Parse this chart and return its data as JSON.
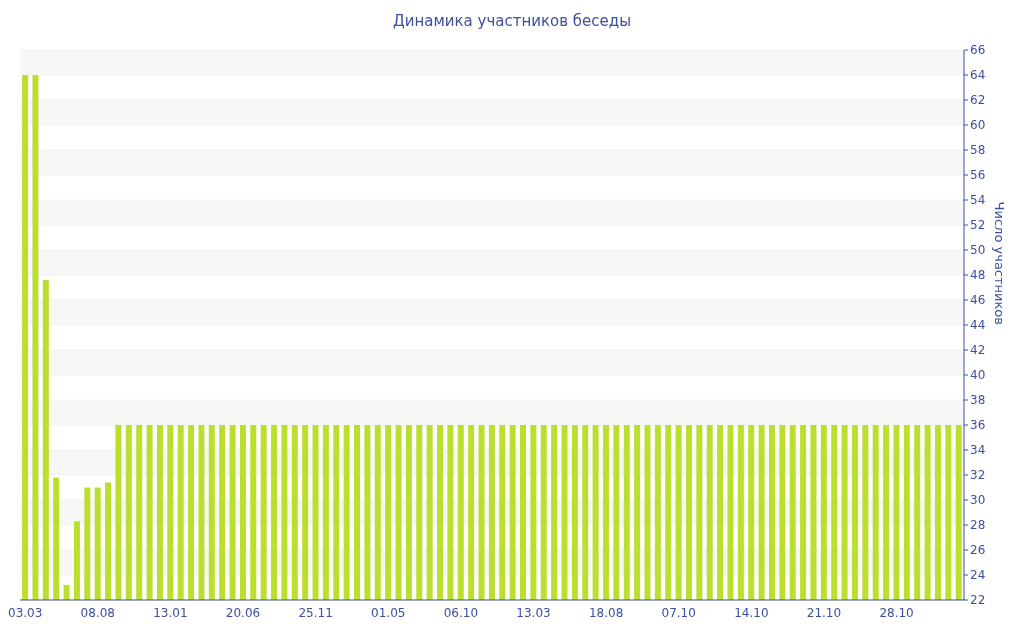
{
  "chart_data": {
    "type": "bar",
    "title": "Динамика участников беседы",
    "ylabel": "Число участников",
    "categories": [
      "03.03",
      null,
      null,
      null,
      null,
      null,
      null,
      "08.08",
      null,
      null,
      null,
      null,
      null,
      null,
      "13.01",
      null,
      null,
      null,
      null,
      null,
      null,
      "20.06",
      null,
      null,
      null,
      null,
      null,
      null,
      "25.11",
      null,
      null,
      null,
      null,
      null,
      null,
      "01.05",
      null,
      null,
      null,
      null,
      null,
      null,
      "06.10",
      null,
      null,
      null,
      null,
      null,
      null,
      "13.03",
      null,
      null,
      null,
      null,
      null,
      null,
      "18.08",
      null,
      null,
      null,
      null,
      null,
      null,
      "07.10",
      null,
      null,
      null,
      null,
      null,
      null,
      "14.10",
      null,
      null,
      null,
      null,
      null,
      null,
      "21.10",
      null,
      null,
      null,
      null,
      null,
      null,
      "28.10",
      null,
      null,
      null,
      null,
      null,
      null
    ],
    "values": [
      64,
      64,
      47.6,
      31.8,
      23.2,
      28.3,
      31,
      31,
      31.4,
      36,
      36,
      36,
      36,
      36,
      36,
      36,
      36,
      36,
      36,
      36,
      36,
      36,
      36,
      36,
      36,
      36,
      36,
      36,
      36,
      36,
      36,
      36,
      36,
      36,
      36,
      36,
      36,
      36,
      36,
      36,
      36,
      36,
      36,
      36,
      36,
      36,
      36,
      36,
      36,
      36,
      36,
      36,
      36,
      36,
      36,
      36,
      36,
      36,
      36,
      36,
      36,
      36,
      36,
      36,
      36,
      36,
      36,
      36,
      36,
      36,
      36,
      36,
      36,
      36,
      36,
      36,
      36,
      36,
      36,
      36,
      36,
      36,
      36,
      36,
      36,
      36,
      36,
      36,
      36,
      36,
      36
    ],
    "color": "#bbdf2e",
    "ylim": [
      22,
      66
    ],
    "yticks": [
      22,
      24,
      26,
      28,
      30,
      32,
      34,
      36,
      38,
      40,
      42,
      44,
      46,
      48,
      50,
      52,
      54,
      56,
      58,
      60,
      62,
      64,
      66
    ],
    "grid": "y"
  }
}
